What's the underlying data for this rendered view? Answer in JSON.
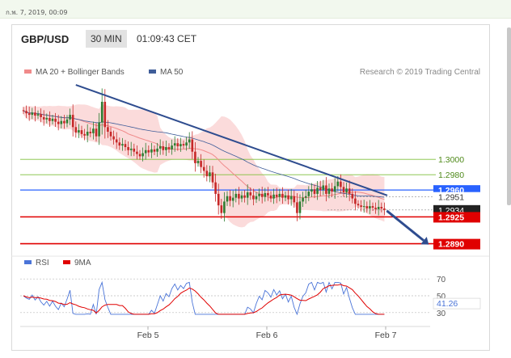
{
  "page": {
    "date_text": "ก.พ. 7, 2019, 00:09"
  },
  "header": {
    "pair": "GBP/USD",
    "timeframe": "30 MIN",
    "time": "01:09:43 CET"
  },
  "colors": {
    "candle_up": "#2e7d32",
    "candle_down": "#c62828",
    "ma20": "#f08a8a",
    "ma50": "#3f5d99",
    "trendline": "#2e4c8f",
    "bands_fill": "#fbd7d7",
    "support": "#e00000",
    "resistance": "#7fbf3a",
    "pivot": "#2962ff",
    "rsi": "#4a74d8",
    "rsi_ma": "#e00000"
  },
  "chart_data": [
    {
      "type": "candlestick",
      "legend": [
        {
          "label": "MA 20 + Bollinger Bands",
          "color": "#f08a8a"
        },
        {
          "label": "MA 50",
          "color": "#3f5d99"
        }
      ],
      "credit": "Research © 2019 Trading Central",
      "x_labels": [
        "Feb 5",
        "Feb 6",
        "Feb 7"
      ],
      "ylim": [
        1.2878,
        1.3115
      ],
      "candles": {
        "start": 1.3064,
        "close": [
          1.3063,
          1.306,
          1.3058,
          1.3061,
          1.3057,
          1.3059,
          1.3055,
          1.3052,
          1.3054,
          1.305,
          1.3053,
          1.3049,
          1.3046,
          1.305,
          1.3047,
          1.3052,
          1.3058,
          1.3042,
          1.3035,
          1.3038,
          1.3033,
          1.3031,
          1.3036,
          1.3034,
          1.304,
          1.303,
          1.3048,
          1.3075,
          1.3042,
          1.3036,
          1.303,
          1.3026,
          1.3022,
          1.3018,
          1.302,
          1.3016,
          1.3012,
          1.3014,
          1.301,
          1.3007,
          1.3004,
          1.3008,
          1.3012,
          1.3009,
          1.3013,
          1.301,
          1.3014,
          1.3017,
          1.3012,
          1.3016,
          1.3013,
          1.3018,
          1.3021,
          1.3017,
          1.302,
          1.3018,
          1.3022,
          1.3026,
          1.301,
          1.2995,
          1.2998,
          1.299,
          1.2985,
          1.2978,
          1.2983,
          1.297,
          1.2955,
          1.294,
          1.293,
          1.2945,
          1.2952,
          1.2946,
          1.295,
          1.2955,
          1.2949,
          1.2953,
          1.295,
          1.2957,
          1.2953,
          1.2948,
          1.2952,
          1.2955,
          1.2951,
          1.2956,
          1.2953,
          1.2949,
          1.2954,
          1.2951,
          1.2955,
          1.295,
          1.2953,
          1.2948,
          1.2952,
          1.2944,
          1.293,
          1.2945,
          1.295,
          1.2952,
          1.2958,
          1.2961,
          1.2955,
          1.2963,
          1.296,
          1.2966,
          1.2955,
          1.2962,
          1.2958,
          1.2965,
          1.2971,
          1.2964,
          1.2957,
          1.2962,
          1.2955,
          1.2949,
          1.2942,
          1.294,
          1.2938,
          1.2939,
          1.2936,
          1.2939,
          1.2937,
          1.2935,
          1.2938,
          1.2936,
          1.2934
        ]
      },
      "trendline": [
        {
          "i": 18,
          "y": 1.3097
        },
        {
          "i": 125,
          "y": 1.2953
        }
      ],
      "levels": [
        {
          "label": "1.3000",
          "value": 1.3,
          "kind": "resistance"
        },
        {
          "label": "1.2980",
          "value": 1.298,
          "kind": "resistance"
        },
        {
          "label": "1.2960",
          "value": 1.296,
          "kind": "pivot"
        },
        {
          "label": "1.2951",
          "value": 1.2951,
          "kind": "ma50"
        },
        {
          "label": "1.2934",
          "value": 1.2934,
          "kind": "last"
        },
        {
          "label": "1.2925",
          "value": 1.2925,
          "kind": "support"
        },
        {
          "label": "1.2890",
          "value": 1.289,
          "kind": "support"
        }
      ],
      "arrow": {
        "from": 1.2933,
        "to": 1.289
      }
    },
    {
      "type": "line",
      "legend": [
        {
          "label": "RSI",
          "color": "#4a74d8"
        },
        {
          "label": "9MA",
          "color": "#e00000"
        }
      ],
      "ylim": [
        25,
        75
      ],
      "y_ticks": [
        "70",
        "50",
        "30"
      ],
      "current_label": "41.26",
      "current_value": 41.26
    }
  ]
}
